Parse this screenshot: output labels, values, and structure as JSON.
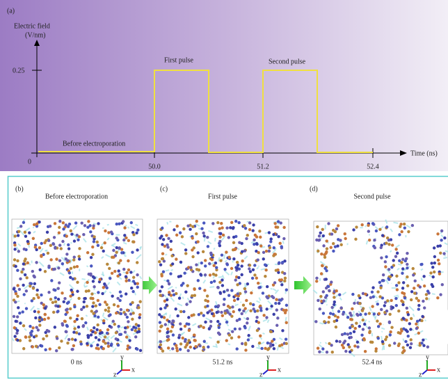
{
  "panel_a": {
    "label": "(a)",
    "y_axis_label": [
      "Electric field",
      "(V/nm)"
    ],
    "y_tick": "0.25",
    "origin": "0",
    "x_ticks": [
      "50.0",
      "51.2",
      "52.4"
    ],
    "x_axis_label": "Time (ns)",
    "annotations": [
      "Before electroporation",
      "First pulse",
      "Second pulse"
    ]
  },
  "panels": [
    {
      "label": "(b)",
      "title": "Before electroporation",
      "time": "0 ns"
    },
    {
      "label": "(c)",
      "title": "First pulse",
      "time": "51.2 ns"
    },
    {
      "label": "(d)",
      "title": "Second pulse",
      "time": "52.4 ns"
    }
  ],
  "triad_labels": [
    "y",
    "x",
    "z"
  ]
}
